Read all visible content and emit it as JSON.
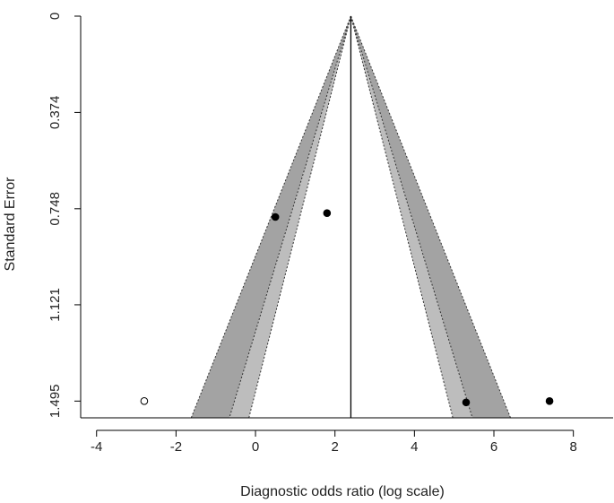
{
  "chart_data": {
    "type": "scatter",
    "subtype": "funnel",
    "title": "",
    "xlabel": "Diagnostic odds ratio (log scale)",
    "ylabel": "Standard Error",
    "xlim": [
      -4.4,
      9.0
    ],
    "ylim": [
      0,
      1.56
    ],
    "y_reversed": true,
    "x_ticks": [
      -4,
      -2,
      0,
      2,
      4,
      6,
      8
    ],
    "y_ticks": [
      0,
      0.374,
      0.748,
      1.121,
      1.495
    ],
    "y_tick_labels": [
      "0",
      "0.374",
      "0.748",
      "1.121",
      "1.495"
    ],
    "center_estimate": 2.4,
    "funnel": {
      "z_values": [
        1.645,
        1.96,
        2.576
      ],
      "inner_fill": "#ffffff",
      "middle_fill": "#bdbdbd",
      "outer_fill": "#a3a3a3"
    },
    "series": [
      {
        "points": [
          {
            "x": 0.5,
            "y": 0.78
          },
          {
            "x": 1.8,
            "y": 0.765
          },
          {
            "x": 5.3,
            "y": 1.5
          },
          {
            "x": 7.4,
            "y": 1.495
          }
        ],
        "marker": "filled"
      },
      {
        "points": [
          {
            "x": -2.8,
            "y": 1.495
          }
        ],
        "marker": "open"
      }
    ],
    "grid": false,
    "legend": "none"
  }
}
